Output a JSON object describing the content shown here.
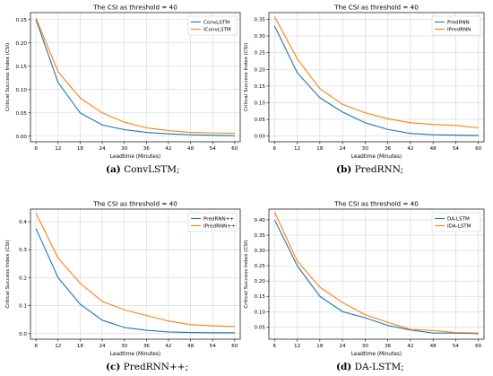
{
  "chart_data": [
    {
      "type": "line",
      "title": "The CSI as threshold = 40",
      "xlabel": "Leadtime (Minutes)",
      "ylabel": "Critical Success Index (CSI)",
      "x": [
        6,
        12,
        18,
        24,
        30,
        36,
        42,
        48,
        54,
        60
      ],
      "xlim": [
        4.5,
        61.5
      ],
      "ylim": [
        -0.012,
        0.265
      ],
      "yticks": [
        "0.00",
        "0.05",
        "0.10",
        "0.15",
        "0.20",
        "0.25"
      ],
      "grid": true,
      "legend_position": "top-right",
      "series": [
        {
          "name": "ConvLSTM",
          "color": "#1f77b4",
          "values": [
            0.25,
            0.115,
            0.05,
            0.024,
            0.014,
            0.008,
            0.005,
            0.003,
            0.002,
            0.001
          ]
        },
        {
          "name": "IConvLSTM",
          "color": "#ff7f0e",
          "values": [
            0.253,
            0.138,
            0.082,
            0.05,
            0.03,
            0.018,
            0.012,
            0.008,
            0.007,
            0.006
          ]
        }
      ],
      "caption_label": "(a)",
      "caption_text": " ConvLSTM;"
    },
    {
      "type": "line",
      "title": "The CSI as threshold = 40",
      "xlabel": "Leadtime (Minutes)",
      "ylabel": "Critical Success Index (CSI)",
      "x": [
        6,
        12,
        18,
        24,
        30,
        36,
        42,
        48,
        54,
        60
      ],
      "xlim": [
        4.5,
        61.5
      ],
      "ylim": [
        -0.017,
        0.37
      ],
      "yticks": [
        "0.00",
        "0.05",
        "0.10",
        "0.15",
        "0.20",
        "0.25",
        "0.30",
        "0.35"
      ],
      "grid": true,
      "legend_position": "top-right",
      "series": [
        {
          "name": "PredRNN",
          "color": "#1f77b4",
          "values": [
            0.33,
            0.19,
            0.115,
            0.072,
            0.04,
            0.02,
            0.008,
            0.004,
            0.003,
            0.002
          ]
        },
        {
          "name": "IPredRNN",
          "color": "#ff7f0e",
          "values": [
            0.358,
            0.232,
            0.142,
            0.095,
            0.07,
            0.052,
            0.04,
            0.035,
            0.032,
            0.025
          ]
        }
      ],
      "caption_label": "(b)",
      "caption_text": " PredRNN;"
    },
    {
      "type": "line",
      "title": "The CSI as threshold = 40",
      "xlabel": "Leadtime (Minutes)",
      "ylabel": "Critical Success Index (CSI)",
      "x": [
        6,
        12,
        18,
        24,
        30,
        36,
        42,
        48,
        54,
        60
      ],
      "xlim": [
        4.5,
        61.5
      ],
      "ylim": [
        -0.02,
        0.445
      ],
      "yticks": [
        "0.0",
        "0.1",
        "0.2",
        "0.3",
        "0.4"
      ],
      "grid": true,
      "legend_position": "top-right",
      "series": [
        {
          "name": "PredRNN++",
          "color": "#1f77b4",
          "values": [
            0.375,
            0.2,
            0.105,
            0.048,
            0.022,
            0.012,
            0.006,
            0.004,
            0.003,
            0.003
          ]
        },
        {
          "name": "IPredRNN++",
          "color": "#ff7f0e",
          "values": [
            0.43,
            0.27,
            0.18,
            0.115,
            0.085,
            0.065,
            0.045,
            0.032,
            0.028,
            0.025
          ]
        }
      ],
      "caption_label": "(c)",
      "caption_text": " PredRNN++;"
    },
    {
      "type": "line",
      "title": "The CSI as threshold = 40",
      "xlabel": "Leadtime (Minutes)",
      "ylabel": "Critical Success Index (CSI)",
      "x": [
        6,
        12,
        18,
        24,
        30,
        36,
        42,
        48,
        54,
        60
      ],
      "xlim": [
        4.5,
        61.5
      ],
      "ylim": [
        0.01,
        0.435
      ],
      "yticks": [
        "0.05",
        "0.10",
        "0.15",
        "0.20",
        "0.25",
        "0.30",
        "0.35",
        "0.40"
      ],
      "grid": true,
      "legend_position": "top-right",
      "series": [
        {
          "name": "DA-LSTM",
          "color": "#1f77b4",
          "values": [
            0.4,
            0.25,
            0.15,
            0.1,
            0.08,
            0.055,
            0.04,
            0.03,
            0.03,
            0.028
          ]
        },
        {
          "name": "IDA-LSTM",
          "color": "#ff7f0e",
          "values": [
            0.425,
            0.265,
            0.18,
            0.13,
            0.09,
            0.065,
            0.042,
            0.038,
            0.032,
            0.03
          ]
        }
      ],
      "caption_label": "(d)",
      "caption_text": " DA-LSTM;"
    }
  ]
}
